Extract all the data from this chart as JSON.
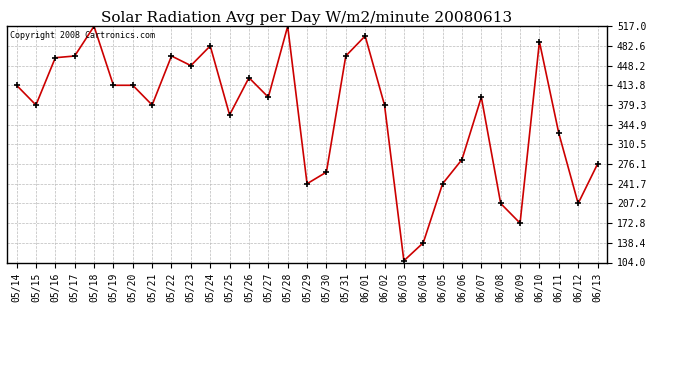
{
  "title": "Solar Radiation Avg per Day W/m2/minute 20080613",
  "copyright": "Copyright 2008 Cartronics.com",
  "labels": [
    "05/14",
    "05/15",
    "05/16",
    "05/17",
    "05/18",
    "05/19",
    "05/20",
    "05/21",
    "05/22",
    "05/23",
    "05/24",
    "05/25",
    "05/26",
    "05/27",
    "05/28",
    "05/29",
    "05/30",
    "05/31",
    "06/01",
    "06/02",
    "06/03",
    "06/04",
    "06/05",
    "06/06",
    "06/07",
    "06/08",
    "06/09",
    "06/10",
    "06/11",
    "06/12",
    "06/13"
  ],
  "values": [
    413.8,
    379.3,
    462.0,
    465.0,
    517.0,
    413.8,
    413.8,
    379.3,
    465.0,
    448.2,
    482.6,
    362.0,
    427.0,
    393.0,
    517.0,
    241.7,
    262.0,
    465.0,
    500.0,
    379.3,
    107.0,
    138.4,
    241.7,
    284.0,
    393.0,
    207.2,
    172.8,
    490.0,
    330.0,
    207.2,
    276.1
  ],
  "line_color": "#cc0000",
  "marker_color": "#000000",
  "background_color": "#ffffff",
  "grid_color": "#bbbbbb",
  "ylim_min": 104.0,
  "ylim_max": 517.0,
  "yticks": [
    104.0,
    138.4,
    172.8,
    207.2,
    241.7,
    276.1,
    310.5,
    344.9,
    379.3,
    413.8,
    448.2,
    482.6,
    517.0
  ],
  "title_fontsize": 11,
  "copyright_fontsize": 6,
  "tick_fontsize": 7
}
